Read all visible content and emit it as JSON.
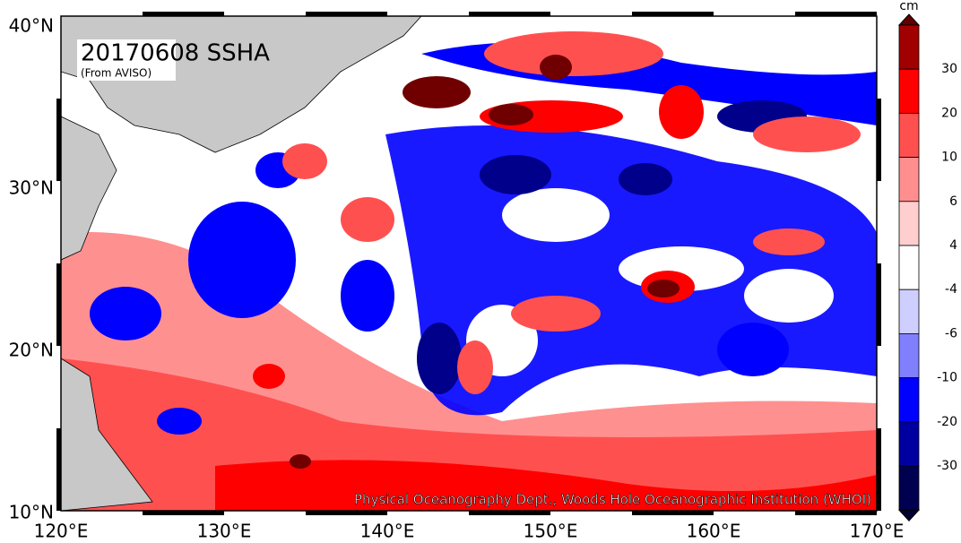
{
  "map": {
    "title": "20170608 SSHA",
    "source": "(From AVISO)",
    "credit": "Physical Oceanography Dept., Woods Hole Oceanographic Institution (WHOI)",
    "lat_labels": [
      "40°N",
      "30°N",
      "20°N",
      "10°N"
    ],
    "lon_labels": [
      "120°E",
      "130°E",
      "140°E",
      "150°E",
      "160°E",
      "170°E"
    ],
    "colorbar": {
      "unit": "cm",
      "levels": [
        30,
        20,
        10,
        6,
        4,
        -4,
        -6,
        -10,
        -20,
        -30
      ]
    }
  }
}
